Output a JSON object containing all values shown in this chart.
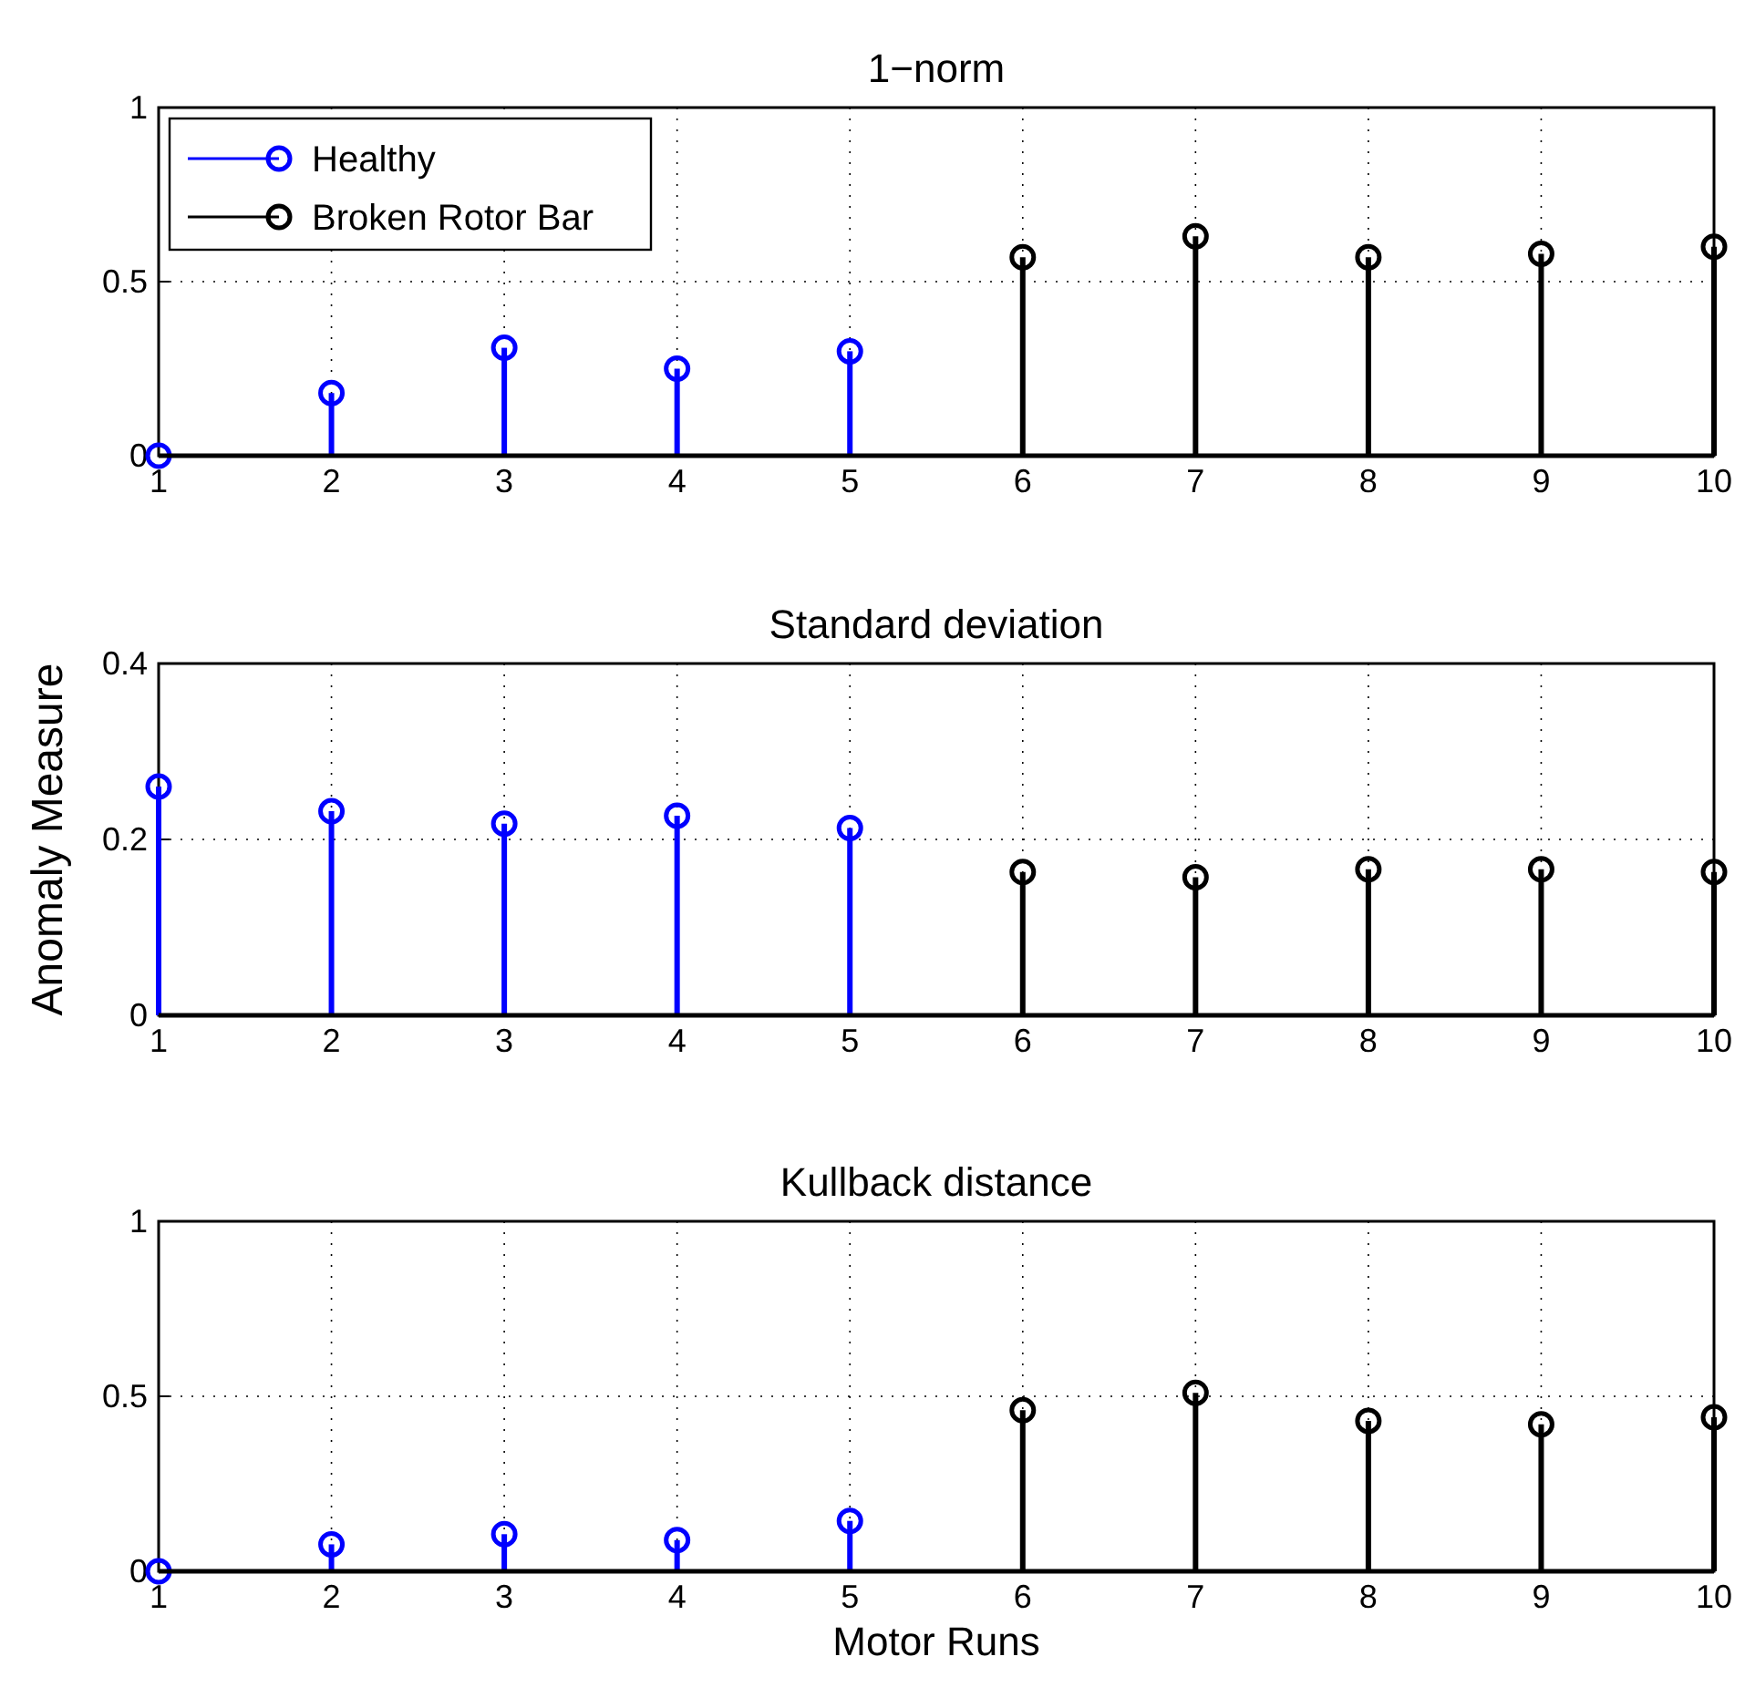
{
  "chart_data": [
    {
      "type": "lollipop",
      "title": "1−norm",
      "xlim": [
        1,
        10
      ],
      "xticks": [
        1,
        2,
        3,
        4,
        5,
        6,
        7,
        8,
        9,
        10
      ],
      "ylim": [
        0,
        1
      ],
      "yticks": [
        0,
        0.5,
        1
      ],
      "grid": true,
      "legend": "top left",
      "series": [
        {
          "name": "Healthy",
          "color": "#0000ff",
          "x": [
            1,
            2,
            3,
            4,
            5
          ],
          "values": [
            0,
            0.18,
            0.31,
            0.25,
            0.3
          ],
          "marker": "circle"
        },
        {
          "name": "Broken Rotor Bar",
          "color": "#000000",
          "x": [
            6,
            7,
            8,
            9,
            10
          ],
          "values": [
            0.57,
            0.63,
            0.57,
            0.58,
            0.6
          ],
          "marker": "circle"
        }
      ]
    },
    {
      "type": "lollipop",
      "title": "Standard deviation",
      "ylabel": "Anomaly Measure",
      "xlim": [
        1,
        10
      ],
      "xticks": [
        1,
        2,
        3,
        4,
        5,
        6,
        7,
        8,
        9,
        10
      ],
      "ylim": [
        0,
        0.4
      ],
      "yticks": [
        0,
        0.2,
        0.4
      ],
      "grid": true,
      "series": [
        {
          "color": "#0000ff",
          "x": [
            1,
            2,
            3,
            4,
            5
          ],
          "values": [
            0.26,
            0.232,
            0.218,
            0.227,
            0.213
          ],
          "marker": "circle"
        },
        {
          "color": "#000000",
          "x": [
            6,
            7,
            8,
            9,
            10
          ],
          "values": [
            0.163,
            0.157,
            0.166,
            0.166,
            0.163
          ],
          "marker": "circle"
        }
      ]
    },
    {
      "type": "lollipop",
      "title": "Kullback distance",
      "xlabel": "Motor Runs",
      "xlim": [
        1,
        10
      ],
      "xticks": [
        1,
        2,
        3,
        4,
        5,
        6,
        7,
        8,
        9,
        10
      ],
      "ylim": [
        0,
        1
      ],
      "yticks": [
        0,
        0.5,
        1
      ],
      "grid": true,
      "series": [
        {
          "color": "#0000ff",
          "x": [
            1,
            2,
            3,
            4,
            5
          ],
          "values": [
            0,
            0.077,
            0.106,
            0.089,
            0.144
          ],
          "marker": "circle"
        },
        {
          "color": "#000000",
          "x": [
            6,
            7,
            8,
            9,
            10
          ],
          "values": [
            0.46,
            0.51,
            0.43,
            0.42,
            0.44
          ],
          "marker": "circle"
        }
      ]
    }
  ]
}
